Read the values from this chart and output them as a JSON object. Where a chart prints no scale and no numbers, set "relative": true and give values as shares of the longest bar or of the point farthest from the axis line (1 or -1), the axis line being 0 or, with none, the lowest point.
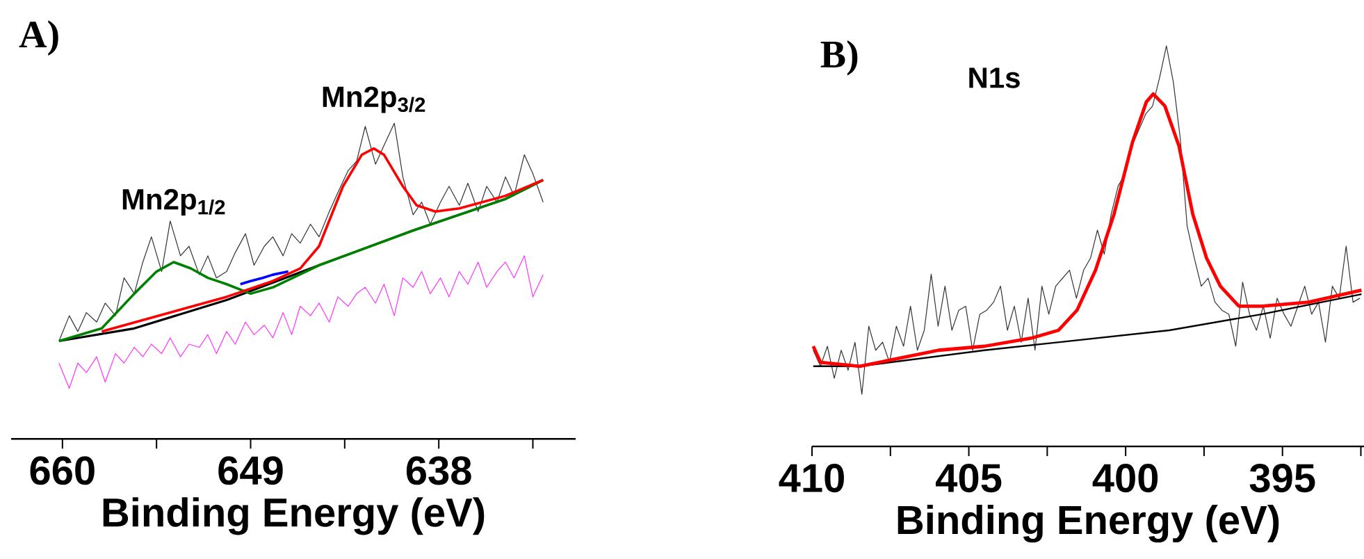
{
  "chart_data": [
    {
      "type": "line",
      "title": "A)",
      "xlabel": "Binding Energy (eV)",
      "relative": true,
      "tick_labels": "x",
      "xlim": [
        663,
        630
      ],
      "xticks": [
        660,
        {
          "value": 654.5,
          "label": null
        },
        649,
        {
          "value": 643.5,
          "label": null
        },
        638,
        {
          "value": 632.5,
          "label": null
        }
      ],
      "annotations": [
        {
          "text": "Mn2p$_{1/2}$",
          "x": 653.5,
          "y": 0.56
        },
        {
          "text": "Mn2p$_{3/2}$",
          "x": 641.8,
          "y": 0.92
        }
      ],
      "series": [
        {
          "color": "#333333",
          "x": [
            660.2,
            659.6,
            659.1,
            658.6,
            658.0,
            657.5,
            656.9,
            656.4,
            655.8,
            655.3,
            654.8,
            654.2,
            653.7,
            653.1,
            652.6,
            652.0,
            651.5,
            651.0,
            650.4,
            649.9,
            649.3,
            648.8,
            648.2,
            647.7,
            647.1,
            646.6,
            646.1,
            645.5,
            645.0,
            644.4,
            643.9,
            643.3,
            642.8,
            642.3,
            641.7,
            641.2,
            640.6,
            640.1,
            639.5,
            639.0,
            638.5,
            637.9,
            637.4,
            636.8,
            636.3,
            635.7,
            635.2,
            634.6,
            634.1,
            633.6,
            633.0,
            632.5,
            631.9
          ],
          "values": [
            0.31,
            0.39,
            0.34,
            0.4,
            0.37,
            0.43,
            0.39,
            0.51,
            0.46,
            0.56,
            0.64,
            0.53,
            0.69,
            0.58,
            0.61,
            0.52,
            0.58,
            0.51,
            0.53,
            0.59,
            0.65,
            0.55,
            0.61,
            0.64,
            0.58,
            0.65,
            0.62,
            0.68,
            0.64,
            0.72,
            0.78,
            0.85,
            0.88,
            0.99,
            0.87,
            0.93,
            1.0,
            0.83,
            0.71,
            0.75,
            0.68,
            0.75,
            0.8,
            0.74,
            0.81,
            0.72,
            0.8,
            0.75,
            0.83,
            0.77,
            0.9,
            0.84,
            0.75
          ]
        },
        {
          "color": "#ff33ff",
          "x": [
            660.2,
            659.6,
            659.1,
            658.6,
            658.0,
            657.5,
            656.9,
            656.4,
            655.8,
            655.3,
            654.8,
            654.2,
            653.7,
            653.1,
            652.6,
            652.0,
            651.5,
            651.0,
            650.4,
            649.9,
            649.3,
            648.8,
            648.2,
            647.7,
            647.1,
            646.6,
            646.1,
            645.5,
            645.0,
            644.4,
            643.9,
            643.3,
            642.8,
            642.3,
            641.7,
            641.2,
            640.6,
            640.1,
            639.5,
            639.0,
            638.5,
            637.9,
            637.4,
            636.8,
            636.3,
            635.7,
            635.2,
            634.6,
            634.1,
            633.6,
            633.0,
            632.5,
            631.9
          ],
          "values": [
            0.24,
            0.16,
            0.24,
            0.21,
            0.26,
            0.18,
            0.27,
            0.24,
            0.29,
            0.26,
            0.3,
            0.27,
            0.32,
            0.26,
            0.3,
            0.29,
            0.33,
            0.27,
            0.34,
            0.3,
            0.37,
            0.33,
            0.36,
            0.32,
            0.4,
            0.33,
            0.42,
            0.39,
            0.43,
            0.37,
            0.45,
            0.42,
            0.46,
            0.48,
            0.43,
            0.49,
            0.39,
            0.51,
            0.48,
            0.53,
            0.46,
            0.51,
            0.45,
            0.53,
            0.49,
            0.56,
            0.48,
            0.53,
            0.56,
            0.51,
            0.58,
            0.45,
            0.52
          ]
        },
        {
          "color": "#000000",
          "x": [
            660.2,
            655.8,
            650.4,
            645.0,
            639.5,
            634.1,
            631.9
          ],
          "values": [
            0.31,
            0.35,
            0.44,
            0.55,
            0.66,
            0.76,
            0.82
          ]
        },
        {
          "color": "#0000ff",
          "x": [
            649.6,
            649.0,
            648.3,
            647.7,
            646.8
          ],
          "values": [
            0.49,
            0.5,
            0.51,
            0.52,
            0.53
          ]
        },
        {
          "color": "#008000",
          "x": [
            660.2,
            657.7,
            655.8,
            654.5,
            653.5,
            652.5,
            651.5,
            650.4,
            649.0,
            647.7,
            645.0,
            639.5,
            634.1,
            631.9
          ],
          "values": [
            0.31,
            0.35,
            0.46,
            0.53,
            0.56,
            0.54,
            0.51,
            0.49,
            0.46,
            0.48,
            0.55,
            0.66,
            0.76,
            0.82
          ]
        },
        {
          "color": "#ff0000",
          "x": [
            657.7,
            650.4,
            647.7,
            646.1,
            645.0,
            643.6,
            642.5,
            641.8,
            641.2,
            640.1,
            639.3,
            638.2,
            636.8,
            634.1,
            631.9
          ],
          "values": [
            0.34,
            0.45,
            0.5,
            0.54,
            0.61,
            0.8,
            0.9,
            0.92,
            0.9,
            0.8,
            0.74,
            0.72,
            0.73,
            0.77,
            0.82
          ]
        }
      ]
    },
    {
      "type": "line",
      "title": "B)",
      "subtitle": "N1s",
      "xlabel": "Binding Energy (eV)",
      "relative": true,
      "tick_labels": "x",
      "xlim": [
        410,
        392.4
      ],
      "xticks": [
        410,
        {
          "value": 407.5,
          "label": null
        },
        405,
        {
          "value": 402.5,
          "label": null
        },
        400,
        {
          "value": 397.5,
          "label": null
        },
        395,
        {
          "value": 392.5,
          "label": null
        }
      ],
      "series": [
        {
          "color": "#333333",
          "x": [
            409.96,
            409.73,
            409.51,
            409.29,
            409.07,
            408.85,
            408.63,
            408.41,
            408.19,
            407.97,
            407.75,
            407.53,
            407.31,
            407.08,
            406.86,
            406.64,
            406.42,
            406.2,
            405.98,
            405.76,
            405.54,
            405.32,
            405.1,
            404.88,
            404.65,
            404.43,
            404.21,
            403.99,
            403.77,
            403.55,
            403.33,
            403.11,
            402.89,
            402.67,
            402.45,
            402.23,
            402.01,
            401.79,
            401.57,
            401.34,
            401.12,
            400.9,
            400.68,
            400.46,
            400.24,
            400.02,
            399.8,
            399.58,
            399.36,
            399.14,
            398.92,
            398.7,
            398.48,
            398.26,
            398.04,
            397.81,
            397.59,
            397.37,
            397.15,
            396.93,
            396.71,
            396.49,
            396.27,
            396.05,
            395.83,
            395.61,
            395.39,
            395.17,
            394.95,
            394.73,
            394.51,
            394.29,
            394.07,
            393.85,
            393.63,
            393.41,
            393.19,
            392.97,
            392.75,
            392.53
          ],
          "values": [
            0.24,
            0.2,
            0.25,
            0.17,
            0.24,
            0.19,
            0.26,
            0.13,
            0.3,
            0.24,
            0.26,
            0.21,
            0.3,
            0.25,
            0.35,
            0.24,
            0.29,
            0.43,
            0.3,
            0.4,
            0.29,
            0.34,
            0.35,
            0.24,
            0.33,
            0.34,
            0.36,
            0.4,
            0.29,
            0.35,
            0.26,
            0.37,
            0.24,
            0.4,
            0.33,
            0.4,
            0.42,
            0.44,
            0.37,
            0.44,
            0.47,
            0.54,
            0.48,
            0.58,
            0.65,
            0.68,
            0.75,
            0.79,
            0.83,
            0.85,
            0.92,
            1.0,
            0.91,
            0.77,
            0.55,
            0.47,
            0.4,
            0.42,
            0.36,
            0.34,
            0.33,
            0.25,
            0.41,
            0.33,
            0.29,
            0.35,
            0.27,
            0.37,
            0.33,
            0.3,
            0.35,
            0.4,
            0.33,
            0.36,
            0.26,
            0.4,
            0.37,
            0.5,
            0.36,
            0.37
          ]
        },
        {
          "color": "#000000",
          "x": [
            409.96,
            408.48,
            404.5,
            398.6,
            395.65,
            392.48
          ],
          "values": [
            0.2,
            0.2,
            0.24,
            0.29,
            0.33,
            0.38
          ]
        },
        {
          "color": "#ff0000",
          "x": [
            409.96,
            409.73,
            408.48,
            405.97,
            404.5,
            403.02,
            402.14,
            401.55,
            400.96,
            400.37,
            399.78,
            399.34,
            399.12,
            398.75,
            398.3,
            397.86,
            397.42,
            396.98,
            396.39,
            395.65,
            394.17,
            392.48
          ],
          "values": [
            0.25,
            0.21,
            0.2,
            0.24,
            0.25,
            0.27,
            0.29,
            0.34,
            0.44,
            0.58,
            0.76,
            0.86,
            0.88,
            0.85,
            0.75,
            0.58,
            0.47,
            0.4,
            0.35,
            0.35,
            0.36,
            0.39
          ]
        }
      ]
    }
  ]
}
